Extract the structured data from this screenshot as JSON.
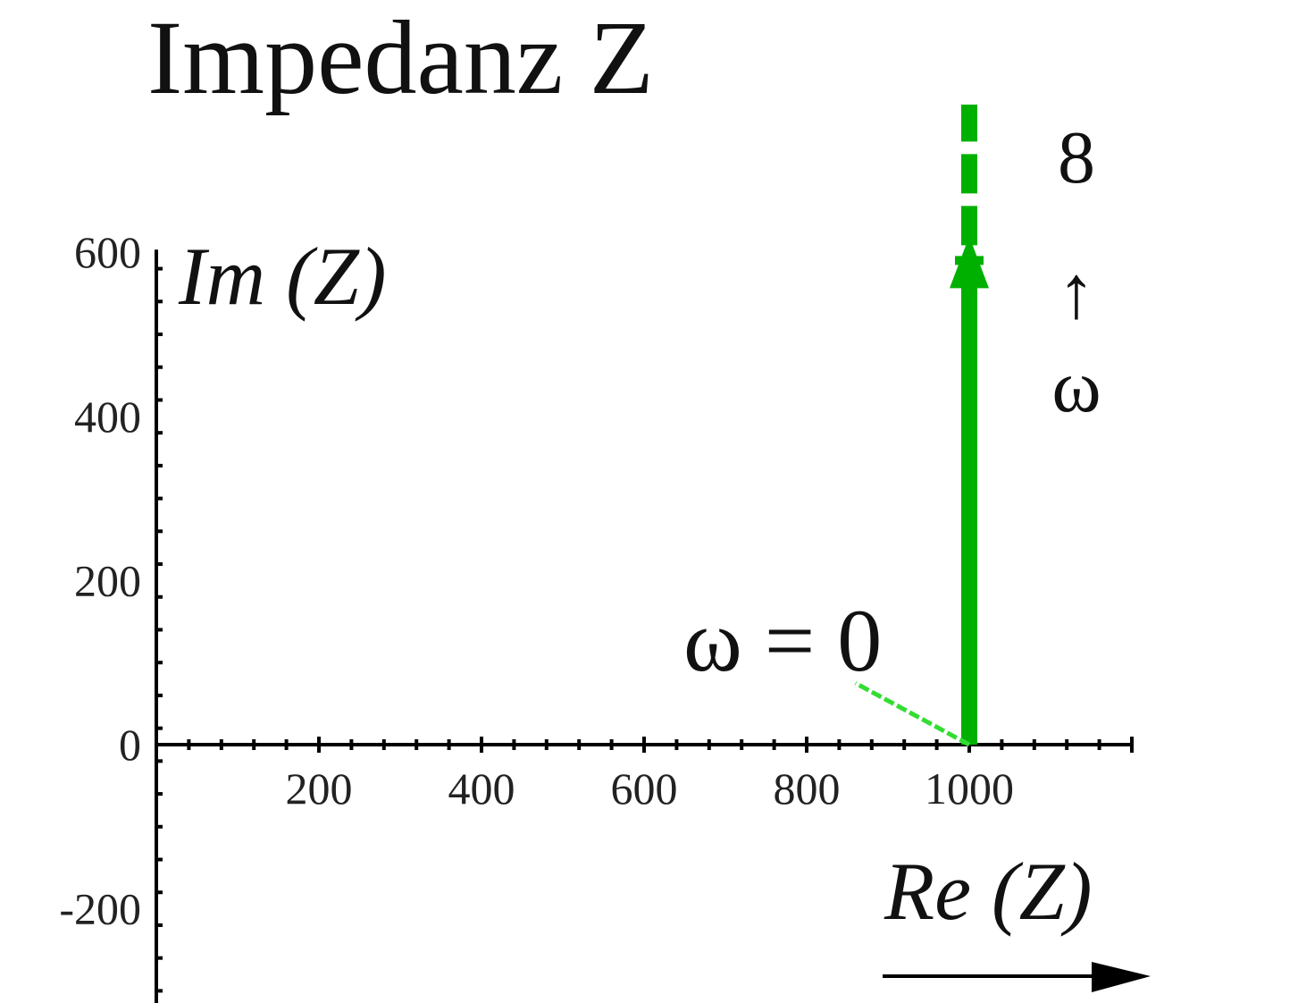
{
  "chart_data": {
    "type": "line",
    "title": "Impedanz Z",
    "xlabel": "Re (Z)",
    "ylabel": "Im (Z)",
    "xlim": [
      0,
      1200
    ],
    "ylim": [
      -300,
      600
    ],
    "x_ticks": [
      200,
      400,
      600,
      800,
      1000
    ],
    "y_ticks": [
      -200,
      0,
      200,
      400,
      600
    ],
    "x_tick_labels": [
      "200",
      "400",
      "600",
      "800",
      "1000"
    ],
    "y_tick_labels": [
      "-200",
      "0",
      "200",
      "400",
      "600"
    ],
    "grid": false,
    "series": [
      {
        "color": "#00b000",
        "style": "thick solid with arrowhead, dashed continuation",
        "points": [
          [
            1000,
            0
          ],
          [
            1000,
            780
          ]
        ]
      },
      {
        "color": "#33dd33",
        "style": "thin dashed",
        "points": [
          [
            1000,
            0
          ],
          [
            860,
            75
          ]
        ]
      }
    ],
    "annotations": {
      "omega_zero": "ω = 0",
      "omega_inf_symbol": "8",
      "omega_inf_arrow": "↑",
      "omega_inf_omega": "ω"
    },
    "colors": {
      "locus": "#00b000",
      "locus_light": "#33dd33",
      "axis": "#000000"
    }
  }
}
